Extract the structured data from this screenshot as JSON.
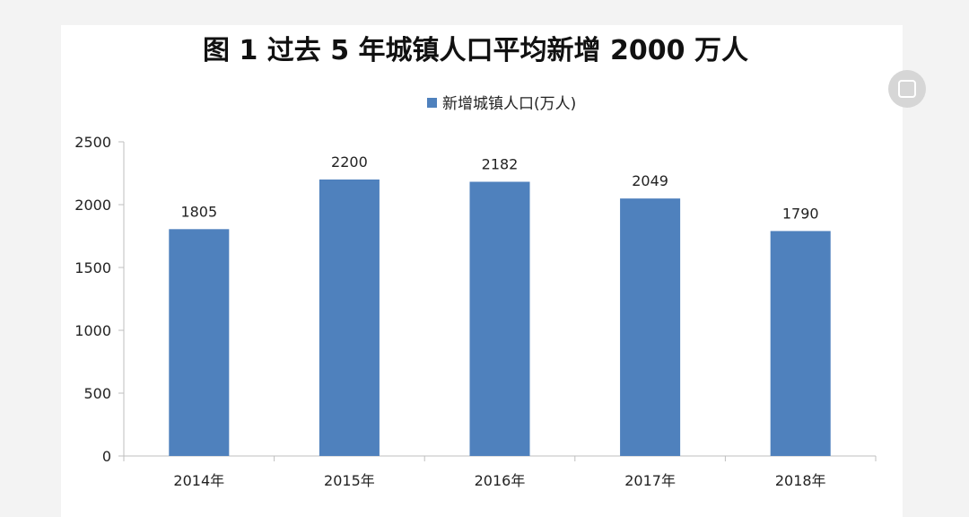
{
  "chart_data": {
    "type": "bar",
    "title": "图 1  过去 5 年城镇人口平均新增 2000 万人",
    "categories": [
      "2014年",
      "2015年",
      "2016年",
      "2017年",
      "2018年"
    ],
    "series": [
      {
        "name": "新增城镇人口(万人)",
        "values": [
          1805,
          2200,
          2182,
          2049,
          1790
        ]
      }
    ],
    "data_labels": [
      "1805",
      "2200",
      "2182",
      "2049",
      "1790"
    ],
    "yticks": [
      "0",
      "500",
      "1000",
      "1500",
      "2000",
      "2500"
    ],
    "ylim": [
      0,
      2500
    ],
    "xlabel": "",
    "ylabel": "",
    "legend": "top-center",
    "grid": false,
    "bar_color": "#4f81bd",
    "axis_color": "#bfbfbf"
  }
}
